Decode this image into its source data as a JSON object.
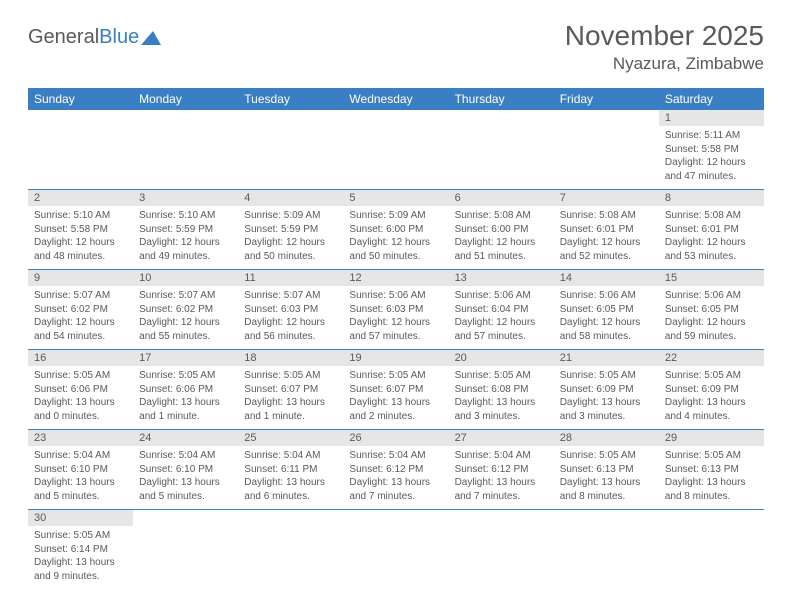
{
  "brand": {
    "part1": "General",
    "part2": "Blue"
  },
  "title": "November 2025",
  "location": "Nyazura, Zimbabwe",
  "colors": {
    "header_bg": "#3a7fc4",
    "daynum_bg": "#e6e6e6",
    "text": "#5a5a5a",
    "rule": "#3a7fc4",
    "page_bg": "#ffffff"
  },
  "dayHeaders": [
    "Sunday",
    "Monday",
    "Tuesday",
    "Wednesday",
    "Thursday",
    "Friday",
    "Saturday"
  ],
  "weeks": [
    [
      null,
      null,
      null,
      null,
      null,
      null,
      {
        "n": "1",
        "sr": "5:11 AM",
        "ss": "5:58 PM",
        "dl": "12 hours and 47 minutes."
      }
    ],
    [
      {
        "n": "2",
        "sr": "5:10 AM",
        "ss": "5:58 PM",
        "dl": "12 hours and 48 minutes."
      },
      {
        "n": "3",
        "sr": "5:10 AM",
        "ss": "5:59 PM",
        "dl": "12 hours and 49 minutes."
      },
      {
        "n": "4",
        "sr": "5:09 AM",
        "ss": "5:59 PM",
        "dl": "12 hours and 50 minutes."
      },
      {
        "n": "5",
        "sr": "5:09 AM",
        "ss": "6:00 PM",
        "dl": "12 hours and 50 minutes."
      },
      {
        "n": "6",
        "sr": "5:08 AM",
        "ss": "6:00 PM",
        "dl": "12 hours and 51 minutes."
      },
      {
        "n": "7",
        "sr": "5:08 AM",
        "ss": "6:01 PM",
        "dl": "12 hours and 52 minutes."
      },
      {
        "n": "8",
        "sr": "5:08 AM",
        "ss": "6:01 PM",
        "dl": "12 hours and 53 minutes."
      }
    ],
    [
      {
        "n": "9",
        "sr": "5:07 AM",
        "ss": "6:02 PM",
        "dl": "12 hours and 54 minutes."
      },
      {
        "n": "10",
        "sr": "5:07 AM",
        "ss": "6:02 PM",
        "dl": "12 hours and 55 minutes."
      },
      {
        "n": "11",
        "sr": "5:07 AM",
        "ss": "6:03 PM",
        "dl": "12 hours and 56 minutes."
      },
      {
        "n": "12",
        "sr": "5:06 AM",
        "ss": "6:03 PM",
        "dl": "12 hours and 57 minutes."
      },
      {
        "n": "13",
        "sr": "5:06 AM",
        "ss": "6:04 PM",
        "dl": "12 hours and 57 minutes."
      },
      {
        "n": "14",
        "sr": "5:06 AM",
        "ss": "6:05 PM",
        "dl": "12 hours and 58 minutes."
      },
      {
        "n": "15",
        "sr": "5:06 AM",
        "ss": "6:05 PM",
        "dl": "12 hours and 59 minutes."
      }
    ],
    [
      {
        "n": "16",
        "sr": "5:05 AM",
        "ss": "6:06 PM",
        "dl": "13 hours and 0 minutes."
      },
      {
        "n": "17",
        "sr": "5:05 AM",
        "ss": "6:06 PM",
        "dl": "13 hours and 1 minute."
      },
      {
        "n": "18",
        "sr": "5:05 AM",
        "ss": "6:07 PM",
        "dl": "13 hours and 1 minute."
      },
      {
        "n": "19",
        "sr": "5:05 AM",
        "ss": "6:07 PM",
        "dl": "13 hours and 2 minutes."
      },
      {
        "n": "20",
        "sr": "5:05 AM",
        "ss": "6:08 PM",
        "dl": "13 hours and 3 minutes."
      },
      {
        "n": "21",
        "sr": "5:05 AM",
        "ss": "6:09 PM",
        "dl": "13 hours and 3 minutes."
      },
      {
        "n": "22",
        "sr": "5:05 AM",
        "ss": "6:09 PM",
        "dl": "13 hours and 4 minutes."
      }
    ],
    [
      {
        "n": "23",
        "sr": "5:04 AM",
        "ss": "6:10 PM",
        "dl": "13 hours and 5 minutes."
      },
      {
        "n": "24",
        "sr": "5:04 AM",
        "ss": "6:10 PM",
        "dl": "13 hours and 5 minutes."
      },
      {
        "n": "25",
        "sr": "5:04 AM",
        "ss": "6:11 PM",
        "dl": "13 hours and 6 minutes."
      },
      {
        "n": "26",
        "sr": "5:04 AM",
        "ss": "6:12 PM",
        "dl": "13 hours and 7 minutes."
      },
      {
        "n": "27",
        "sr": "5:04 AM",
        "ss": "6:12 PM",
        "dl": "13 hours and 7 minutes."
      },
      {
        "n": "28",
        "sr": "5:05 AM",
        "ss": "6:13 PM",
        "dl": "13 hours and 8 minutes."
      },
      {
        "n": "29",
        "sr": "5:05 AM",
        "ss": "6:13 PM",
        "dl": "13 hours and 8 minutes."
      }
    ],
    [
      {
        "n": "30",
        "sr": "5:05 AM",
        "ss": "6:14 PM",
        "dl": "13 hours and 9 minutes."
      },
      null,
      null,
      null,
      null,
      null,
      null
    ]
  ],
  "labels": {
    "sunrise": "Sunrise:",
    "sunset": "Sunset:",
    "daylight": "Daylight:"
  }
}
